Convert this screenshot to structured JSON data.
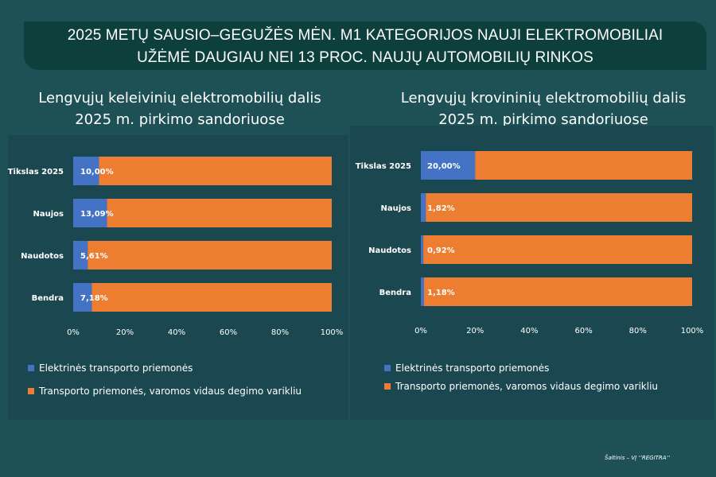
{
  "banner": {
    "line1": "2025 METŲ SAUSIO–GEGUŽĖS MĖN. M1 KATEGORIJOS NAUJI ELEKTROMOBILIAI",
    "line2": "UŽĖMĖ DAUGIAU NEI 13 PROC. NAUJŲ AUTOMOBILIŲ RINKOS"
  },
  "colors": {
    "page_background": "#1e5155",
    "banner_background": "#0d3f3c",
    "panel_background": "#1b4850",
    "electric": "#4472c4",
    "combustion": "#ed7d31"
  },
  "source": "Šaltinis – VĮ ‘’REGITRA‘’",
  "chart_data": [
    {
      "type": "bar",
      "orientation": "horizontal",
      "stacked": "100%",
      "title": [
        "Lengvųjų keleivinių elektromobilių dalis",
        "2025 m. pirkimo sandoriuose"
      ],
      "categories": [
        "Tikslas 2025",
        "Naujos",
        "Naudotos",
        "Bendra"
      ],
      "series": [
        {
          "name": "Elektrinės transporto priemonės",
          "color": "#4472c4",
          "values": [
            10.0,
            13.09,
            5.61,
            7.18
          ]
        },
        {
          "name": "Transporto priemonės, varomos vidaus degimo varikliu",
          "color": "#ed7d31",
          "values": [
            90.0,
            86.91,
            94.39,
            92.82
          ]
        }
      ],
      "data_labels": [
        "10,00%",
        "13,09%",
        "5,61%",
        "7,18%"
      ],
      "xlim": [
        0,
        100
      ],
      "x_ticks": [
        "0%",
        "20%",
        "40%",
        "60%",
        "80%",
        "100%"
      ],
      "grid": false,
      "legend_position": "bottom"
    },
    {
      "type": "bar",
      "orientation": "horizontal",
      "stacked": "100%",
      "title": [
        "Lengvųjų krovininių elektromobilių dalis",
        "2025 m. pirkimo sandoriuose"
      ],
      "categories": [
        "Tikslas 2025",
        "Naujos",
        "Naudotos",
        "Bendra"
      ],
      "series": [
        {
          "name": "Elektrinės transporto priemonės",
          "color": "#4472c4",
          "values": [
            20.0,
            1.82,
            0.92,
            1.18
          ]
        },
        {
          "name": "Transporto priemonės, varomos vidaus degimo varikliu",
          "color": "#ed7d31",
          "values": [
            80.0,
            98.18,
            99.08,
            98.82
          ]
        }
      ],
      "data_labels": [
        "20,00%",
        "1,82%",
        "0,92%",
        "1,18%"
      ],
      "xlim": [
        0,
        100
      ],
      "x_ticks": [
        "0%",
        "20%",
        "40%",
        "60%",
        "80%",
        "100%"
      ],
      "grid": false,
      "legend_position": "bottom"
    }
  ]
}
